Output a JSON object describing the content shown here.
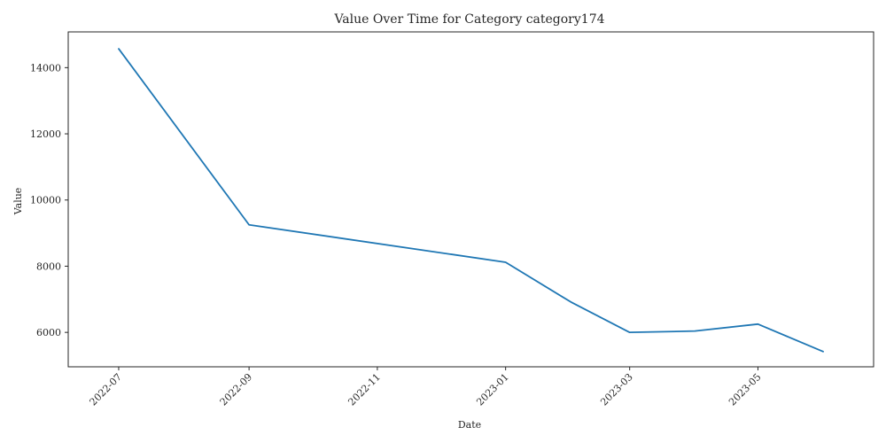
{
  "chart_data": {
    "type": "line",
    "title": "Value Over Time for Category category174",
    "xlabel": "Date",
    "ylabel": "Value",
    "x": [
      "2022-07-01",
      "2022-09-01",
      "2023-01-01",
      "2023-02-01",
      "2023-03-01",
      "2023-04-01",
      "2023-05-01",
      "2023-06-01"
    ],
    "series": [
      {
        "values": [
          14570,
          9250,
          8120,
          6920,
          6000,
          6040,
          6250,
          5420
        ],
        "color": "#1f77b4"
      }
    ],
    "xticks": [
      "2022-07",
      "2022-09",
      "2022-11",
      "2023-01",
      "2023-03",
      "2023-05"
    ],
    "yticks": [
      6000,
      8000,
      10000,
      12000,
      14000
    ],
    "xlim": [
      "2022-06-07",
      "2023-06-25"
    ],
    "ylim": [
      4960,
      15080
    ],
    "grid": false,
    "legend": "none"
  }
}
